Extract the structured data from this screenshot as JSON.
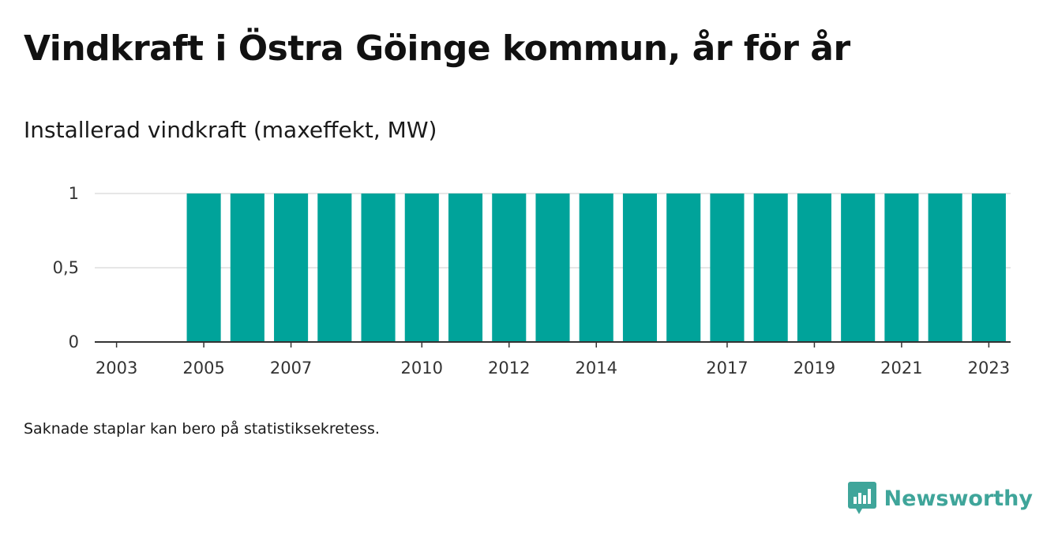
{
  "title": "Vindkraft i Östra Göinge kommun, år för år",
  "subtitle": "Installerad vindkraft (maxeffekt, MW)",
  "footnote": "Saknade staplar kan bero på statistiksekretess.",
  "brand": {
    "name": "Newsworthy",
    "icon": "newsworthy-chart-bubble-icon",
    "color": "#3fa59a"
  },
  "chart_data": {
    "type": "bar",
    "categories": [
      "2003",
      "2004",
      "2005",
      "2006",
      "2007",
      "2008",
      "2009",
      "2010",
      "2011",
      "2012",
      "2013",
      "2014",
      "2015",
      "2016",
      "2017",
      "2018",
      "2019",
      "2020",
      "2021",
      "2022",
      "2023"
    ],
    "values": [
      0,
      0,
      1,
      1,
      1,
      1,
      1,
      1,
      1,
      1,
      1,
      1,
      1,
      1,
      1,
      1,
      1,
      1,
      1,
      1,
      1
    ],
    "x_tick_labels": [
      "2003",
      "2005",
      "2007",
      "2010",
      "2012",
      "2014",
      "2017",
      "2019",
      "2021",
      "2023"
    ],
    "y_ticks": [
      0,
      0.5,
      1
    ],
    "y_tick_labels": [
      "0",
      "0,5",
      "1"
    ],
    "ylim": [
      0,
      1
    ],
    "bar_color": "#00a39a",
    "grid": true,
    "legend": "none"
  }
}
